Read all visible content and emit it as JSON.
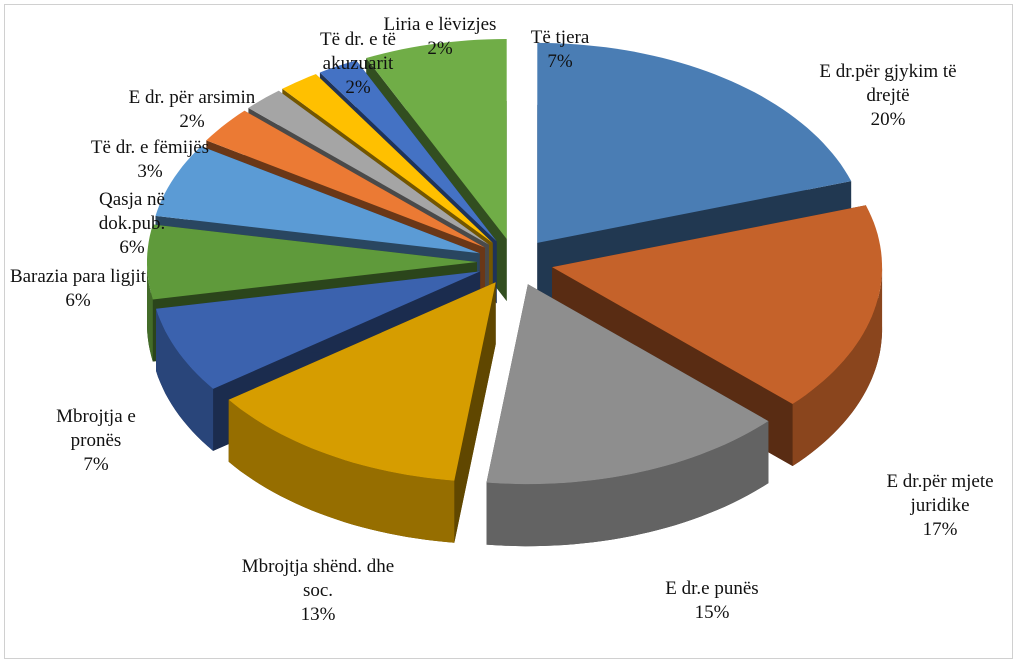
{
  "chart_data": {
    "type": "pie",
    "categories": [
      "E dr.për gjykim të drejtë",
      "E dr.për mjete juridike",
      "E dr.e punës",
      "Mbrojtja shënd. dhe soc.",
      "Mbrojtja e pronës",
      "Barazia para ligjit",
      "Qasja në dok.pub.",
      "Të dr. e fëmijës",
      "E dr. për arsimin",
      "Të dr. e të akuzuarit",
      "Liria e lëvizjes",
      "Të tjera"
    ],
    "values": [
      20,
      17,
      15,
      13,
      7,
      6,
      6,
      3,
      2,
      2,
      2,
      7
    ],
    "value_labels": [
      "20%",
      "17%",
      "15%",
      "13%",
      "7%",
      "6%",
      "6%",
      "3%",
      "2%",
      "2%",
      "2%",
      "7%"
    ],
    "colors": [
      "#4a7db4",
      "#c5622a",
      "#8e8e8e",
      "#d69d00",
      "#3b62ae",
      "#5f9a3b",
      "#5b9bd5",
      "#eb7a34",
      "#a5a5a5",
      "#ffc000",
      "#4472c4",
      "#70ad47"
    ]
  }
}
